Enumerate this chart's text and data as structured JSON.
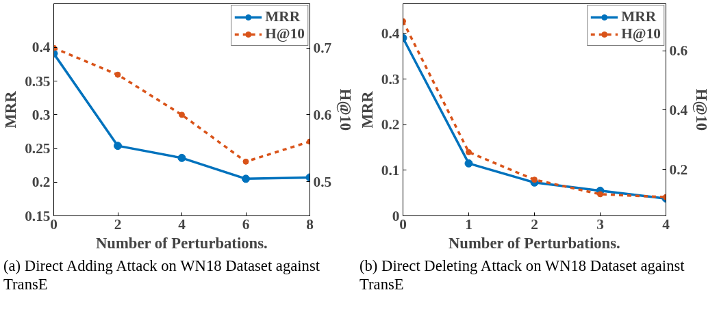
{
  "chart_data": [
    {
      "type": "line",
      "xlabel": "Number of Perturbations.",
      "ylabel": "MRR",
      "y2label": "H@10",
      "annotations": [
        "(a) Direct Adding Attack on WN18 Dataset against TransE"
      ],
      "x": [
        0,
        2,
        4,
        6,
        8
      ],
      "xlim": [
        0,
        8
      ],
      "xticks": [
        0,
        2,
        4,
        6,
        8
      ],
      "ylim": [
        0.15,
        0.465
      ],
      "yticks": [
        0.15,
        0.2,
        0.25,
        0.3,
        0.35,
        0.4
      ],
      "y2lim": [
        0.449,
        0.766
      ],
      "y2ticks": [
        0.5,
        0.6,
        0.7
      ],
      "legend": "top right",
      "grid": false,
      "marker": "circle",
      "series": [
        {
          "name": "MRR",
          "color": "#0072bd",
          "values": [
            0.391,
            0.254,
            0.236,
            0.205,
            0.207
          ],
          "line_style": "solid"
        },
        {
          "name": "H@10",
          "color": "#d95319",
          "values": [
            0.7,
            0.66,
            0.6,
            0.53,
            0.56
          ],
          "axis": "y2",
          "line_style": "dashed"
        }
      ]
    },
    {
      "type": "line",
      "xlabel": "Number of Perturbations.",
      "ylabel": "MRR",
      "y2label": "H@10",
      "annotations": [
        "(b) Direct Deleting Attack on WN18 Dataset against TransE"
      ],
      "x": [
        0,
        1,
        2,
        3,
        4
      ],
      "xlim": [
        0,
        4
      ],
      "xticks": [
        0,
        1,
        2,
        3,
        4
      ],
      "ylim": [
        0,
        0.465
      ],
      "yticks": [
        0,
        0.1,
        0.2,
        0.3,
        0.4
      ],
      "y2lim": [
        0.043,
        0.759
      ],
      "y2ticks": [
        0.2,
        0.4,
        0.6
      ],
      "legend": "top right",
      "grid": false,
      "marker": "circle",
      "series": [
        {
          "name": "MRR",
          "color": "#0072bd",
          "values": [
            0.39,
            0.115,
            0.073,
            0.055,
            0.038
          ],
          "line_style": "solid"
        },
        {
          "name": "H@10",
          "color": "#d95319",
          "values": [
            0.7,
            0.258,
            0.165,
            0.116,
            0.106
          ],
          "axis": "y2",
          "line_style": "dashed"
        }
      ]
    }
  ]
}
